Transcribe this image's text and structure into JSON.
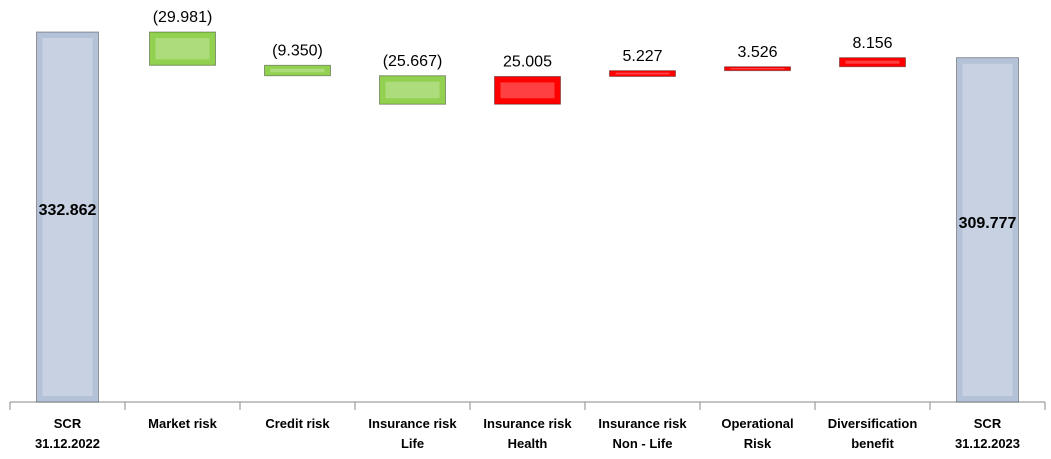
{
  "chart_data": {
    "type": "waterfall",
    "categories": [
      "SCR\n31.12.2022",
      "Market risk",
      "Credit risk",
      "Insurance risk\nLife",
      "Insurance risk\nHealth",
      "Insurance risk\nNon - Life",
      "Operational\nRisk",
      "Diversification\nbenefit",
      "SCR\n31.12.2023"
    ],
    "values": [
      332.862,
      -29.981,
      -9.35,
      -25.667,
      25.005,
      5.227,
      3.526,
      8.156,
      309.777
    ],
    "value_labels": [
      "332.862",
      "(29.981)",
      "(9.350)",
      "(25.667)",
      "25.005",
      "5.227",
      "3.526",
      "8.156",
      "309.777"
    ],
    "total_color": "#b4c2d8",
    "decrease_color": "#92d050",
    "increase_color": "#ff0000"
  }
}
